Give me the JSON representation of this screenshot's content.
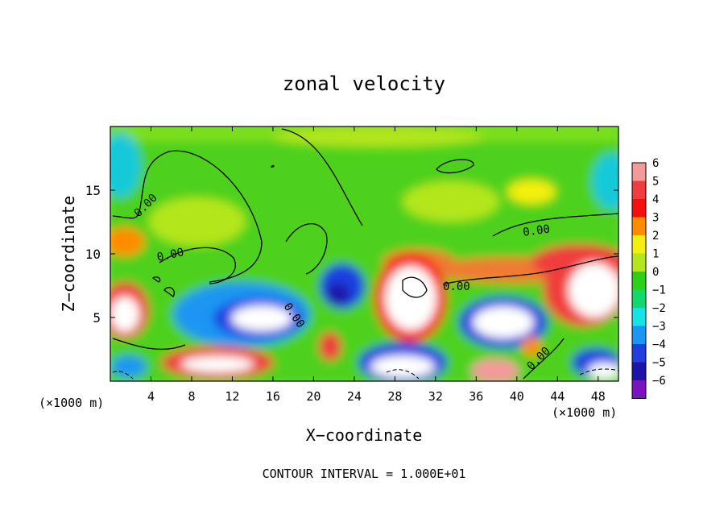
{
  "chart_data": {
    "type": "heatmap",
    "title": "zonal velocity",
    "xlabel": "X−coordinate",
    "ylabel": "Z−coordinate",
    "x_unit_left": "(×1000 m)",
    "x_unit_right": "(×1000 m)",
    "xlim": [
      0,
      50
    ],
    "ylim": [
      0,
      20
    ],
    "x_ticks": [
      4,
      8,
      12,
      16,
      20,
      24,
      28,
      32,
      36,
      40,
      44,
      48
    ],
    "y_ticks": [
      5,
      10,
      15
    ],
    "colorbar": {
      "levels": [
        6,
        5,
        4,
        3,
        2,
        1,
        0,
        -1,
        -2,
        -3,
        -4,
        -5,
        -6
      ],
      "colors": [
        "#f49a9a",
        "#f03c3c",
        "#f51010",
        "#ff8c00",
        "#f4ef10",
        "#b4e61e",
        "#2ecf18",
        "#13d96c",
        "#16e3e3",
        "#1b96f2",
        "#1f3fe0",
        "#1f14a8",
        "#7a14c0"
      ]
    },
    "contour_labels": [
      "0.00",
      "0.00",
      "0.00",
      "0.00",
      "0.00",
      "0.00"
    ],
    "footer": "CONTOUR INTERVAL = 1.000E+01"
  }
}
